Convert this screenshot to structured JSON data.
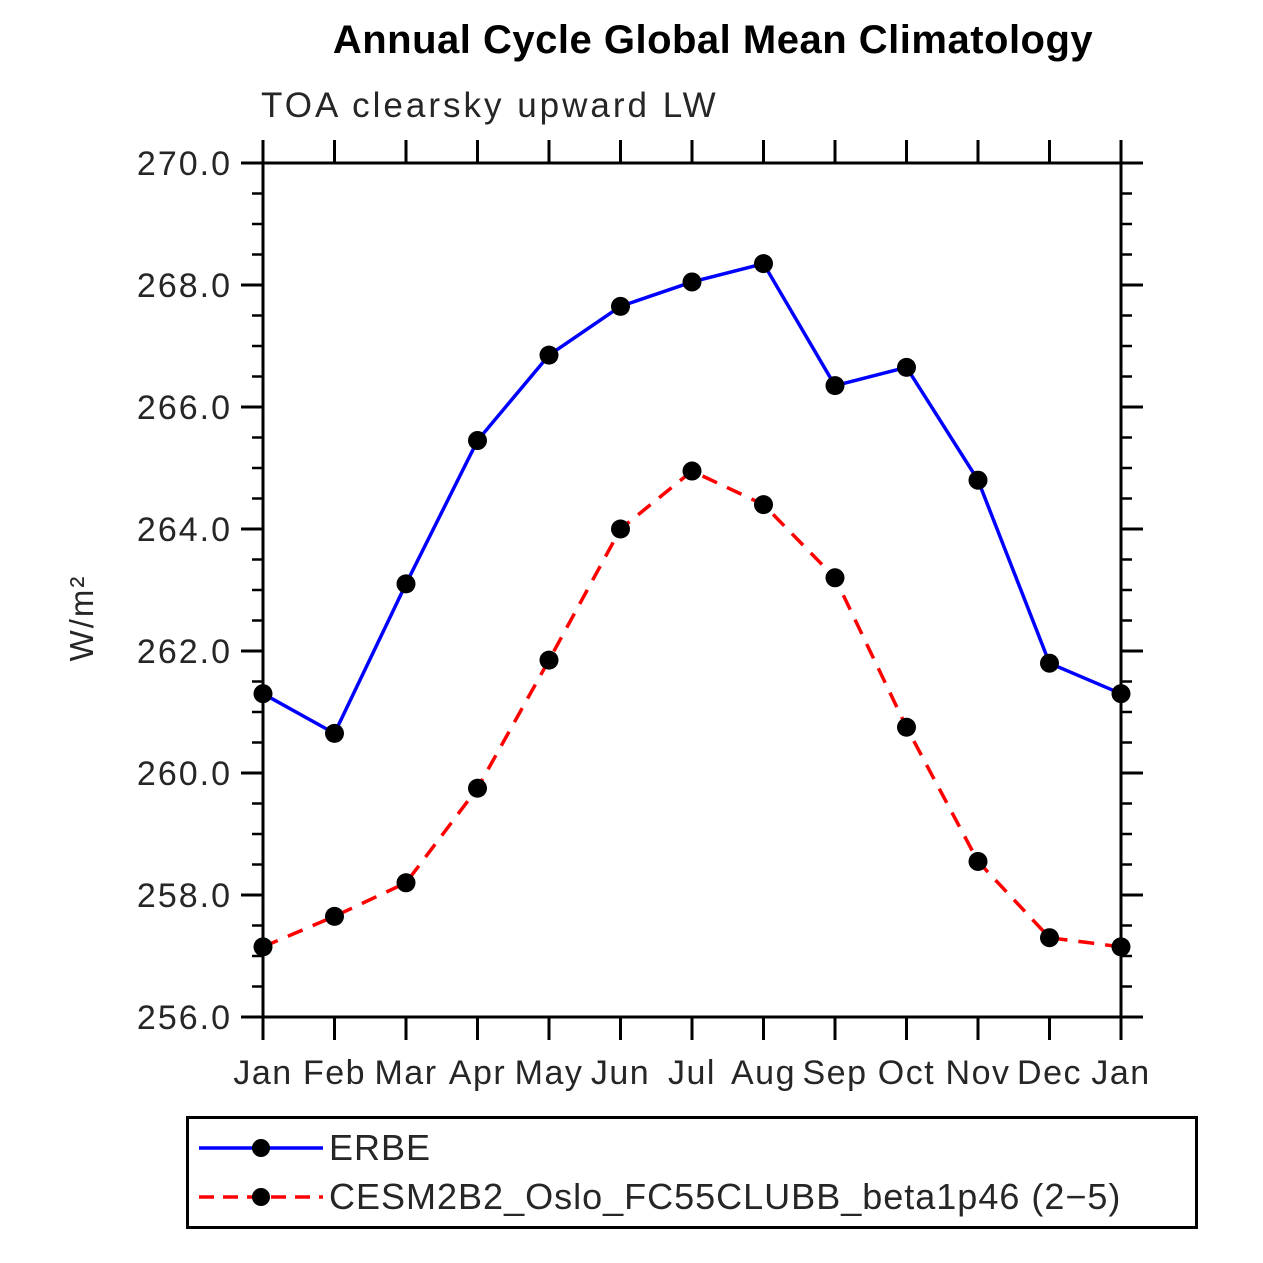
{
  "chart_data": {
    "type": "line",
    "title": "Annual Cycle Global Mean Climatology",
    "subtitle": "TOA clearsky upward LW",
    "ylabel": "W/m²",
    "x_categories": [
      "Jan",
      "Feb",
      "Mar",
      "Apr",
      "May",
      "Jun",
      "Jul",
      "Aug",
      "Sep",
      "Oct",
      "Nov",
      "Dec",
      "Jan"
    ],
    "ylim": [
      256.0,
      270.0
    ],
    "ytick_step": 2.0,
    "ytick_minor_step": 0.5,
    "ytick_labels": [
      "256.0",
      "258.0",
      "260.0",
      "262.0",
      "264.0",
      "266.0",
      "268.0",
      "270.0"
    ],
    "grid": false,
    "legend_position": "bottom-left",
    "colors": {
      "erbe_line": "#0000ff",
      "cesm_line": "#ff0000",
      "marker": "#000000",
      "axis": "#000000",
      "label_text": "#262626"
    },
    "series": [
      {
        "name": "ERBE",
        "color": "#0000ff",
        "style": "solid",
        "marker": "circle",
        "marker_color": "#000000",
        "values": [
          261.3,
          260.65,
          263.1,
          265.45,
          266.85,
          267.65,
          268.05,
          268.35,
          266.35,
          266.65,
          264.8,
          261.8,
          261.3
        ]
      },
      {
        "name": "CESM2B2_Oslo_FC55CLUBB_beta1p46 (2−5)",
        "color": "#ff0000",
        "style": "dashed",
        "marker": "circle",
        "marker_color": "#000000",
        "values": [
          257.15,
          257.65,
          258.2,
          259.75,
          261.85,
          264.0,
          264.95,
          264.4,
          263.2,
          260.75,
          258.55,
          257.3,
          257.15
        ]
      }
    ]
  }
}
